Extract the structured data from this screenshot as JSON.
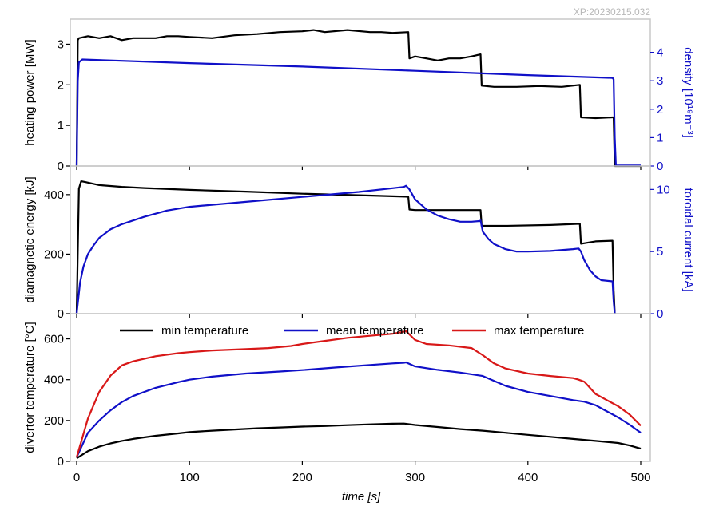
{
  "shot_id": "XP:20230215.032",
  "colors": {
    "black": "#000000",
    "blue": "#1010c8",
    "red": "#d81818",
    "frame": "#c8c8c8"
  },
  "chart_data": [
    {
      "type": "line",
      "ylabel": "heating power [MW]",
      "ylabel_right": "density [10¹⁹m⁻³]",
      "xlim": [
        -2,
        502
      ],
      "ylim": [
        0,
        3.5
      ],
      "ylim_right": [
        0,
        5.0
      ],
      "yticks": [
        0,
        1,
        2,
        3
      ],
      "yticks_right": [
        0,
        1,
        2,
        3,
        4
      ],
      "series": [
        {
          "color": "black",
          "axis": "left",
          "x": [
            0,
            1,
            2,
            10,
            20,
            30,
            40,
            50,
            60,
            70,
            80,
            90,
            100,
            120,
            140,
            160,
            180,
            200,
            210,
            220,
            240,
            260,
            270,
            280,
            294,
            295,
            300,
            310,
            320,
            330,
            340,
            350,
            358,
            359,
            370,
            390,
            410,
            430,
            446,
            447,
            460,
            475,
            476,
            477,
            478,
            500
          ],
          "y": [
            0,
            3.1,
            3.15,
            3.2,
            3.15,
            3.2,
            3.1,
            3.15,
            3.15,
            3.15,
            3.2,
            3.2,
            3.18,
            3.15,
            3.22,
            3.25,
            3.3,
            3.32,
            3.35,
            3.3,
            3.35,
            3.3,
            3.3,
            3.28,
            3.3,
            2.65,
            2.7,
            2.65,
            2.6,
            2.65,
            2.65,
            2.7,
            2.75,
            1.98,
            1.95,
            1.95,
            1.97,
            1.95,
            2.0,
            1.2,
            1.18,
            1.2,
            1.2,
            0,
            0,
            0
          ]
        },
        {
          "color": "blue",
          "axis": "right",
          "x": [
            0,
            1,
            2,
            5,
            100,
            200,
            300,
            400,
            475,
            476,
            477,
            478,
            500
          ],
          "y": [
            0,
            3.0,
            3.65,
            3.75,
            3.62,
            3.5,
            3.35,
            3.2,
            3.1,
            3.05,
            1.0,
            0.02,
            0.02
          ]
        }
      ]
    },
    {
      "type": "line",
      "ylabel": "diamagnetic energy [kJ]",
      "ylabel_right": "toroidal current [kA]",
      "xlim": [
        -2,
        502
      ],
      "ylim": [
        0,
        480
      ],
      "ylim_right": [
        0,
        11.5
      ],
      "yticks": [
        0,
        200,
        400
      ],
      "yticks_right": [
        0,
        5,
        10
      ],
      "series": [
        {
          "color": "black",
          "axis": "left",
          "x": [
            0,
            2,
            4,
            8,
            20,
            40,
            60,
            100,
            150,
            200,
            250,
            292,
            294,
            295,
            300,
            320,
            340,
            358,
            359,
            380,
            420,
            446,
            447,
            460,
            475,
            476,
            477
          ],
          "y": [
            0,
            420,
            445,
            442,
            432,
            426,
            422,
            416,
            410,
            403,
            398,
            393,
            392,
            350,
            348,
            348,
            348,
            348,
            295,
            295,
            298,
            302,
            235,
            243,
            245,
            80,
            0
          ]
        },
        {
          "color": "blue",
          "axis": "right",
          "x": [
            0,
            3,
            6,
            10,
            15,
            20,
            30,
            40,
            60,
            80,
            100,
            150,
            200,
            250,
            280,
            290,
            292,
            295,
            300,
            310,
            320,
            330,
            340,
            350,
            357,
            358,
            360,
            365,
            370,
            380,
            390,
            400,
            420,
            440,
            445,
            447,
            450,
            455,
            460,
            465,
            475,
            476,
            477
          ],
          "y": [
            0,
            2.5,
            3.8,
            4.8,
            5.5,
            6.1,
            6.8,
            7.2,
            7.8,
            8.3,
            8.6,
            9.0,
            9.4,
            9.8,
            10.1,
            10.2,
            10.3,
            10.0,
            9.2,
            8.4,
            7.9,
            7.6,
            7.4,
            7.4,
            7.45,
            7.5,
            6.6,
            6.0,
            5.6,
            5.2,
            5.0,
            5.0,
            5.05,
            5.2,
            5.25,
            5.0,
            4.3,
            3.5,
            3.0,
            2.7,
            2.6,
            1.0,
            0
          ]
        }
      ]
    },
    {
      "type": "line",
      "xlabel": "time [s]",
      "ylabel": "divertor temperature [°C]",
      "xlim": [
        -2,
        502
      ],
      "ylim": [
        0,
        700
      ],
      "yticks": [
        0,
        200,
        400,
        600
      ],
      "xticks": [
        0,
        100,
        200,
        300,
        400,
        500
      ],
      "legend_placement": "top",
      "series": [
        {
          "name": "min temperature",
          "color": "black",
          "x": [
            0,
            10,
            20,
            30,
            40,
            50,
            70,
            90,
            100,
            120,
            140,
            160,
            180,
            200,
            220,
            240,
            260,
            280,
            290,
            300,
            320,
            340,
            360,
            380,
            400,
            420,
            440,
            460,
            480,
            490,
            500
          ],
          "y": [
            15,
            50,
            72,
            88,
            100,
            110,
            125,
            137,
            143,
            150,
            156,
            162,
            166,
            170,
            173,
            177,
            181,
            184,
            185,
            178,
            168,
            158,
            150,
            140,
            130,
            120,
            110,
            100,
            90,
            78,
            62
          ]
        },
        {
          "name": "mean temperature",
          "color": "blue",
          "x": [
            0,
            10,
            20,
            30,
            40,
            50,
            70,
            90,
            100,
            120,
            150,
            180,
            200,
            230,
            260,
            280,
            290,
            292,
            300,
            320,
            340,
            360,
            380,
            400,
            420,
            440,
            450,
            460,
            470,
            480,
            490,
            500
          ],
          "y": [
            20,
            140,
            200,
            250,
            290,
            320,
            360,
            388,
            400,
            415,
            430,
            440,
            447,
            460,
            472,
            480,
            483,
            485,
            465,
            448,
            435,
            418,
            370,
            340,
            320,
            300,
            292,
            275,
            245,
            215,
            180,
            140
          ]
        },
        {
          "name": "max temperature",
          "color": "red",
          "x": [
            0,
            10,
            20,
            30,
            40,
            50,
            70,
            90,
            100,
            120,
            150,
            170,
            190,
            200,
            220,
            240,
            260,
            280,
            290,
            292,
            300,
            310,
            330,
            350,
            360,
            370,
            380,
            400,
            420,
            440,
            445,
            450,
            460,
            470,
            480,
            490,
            500
          ],
          "y": [
            20,
            210,
            340,
            420,
            470,
            490,
            515,
            530,
            535,
            543,
            550,
            555,
            565,
            575,
            590,
            605,
            615,
            625,
            635,
            638,
            595,
            575,
            568,
            555,
            520,
            480,
            455,
            430,
            418,
            408,
            400,
            390,
            330,
            300,
            270,
            230,
            175
          ]
        }
      ]
    }
  ]
}
